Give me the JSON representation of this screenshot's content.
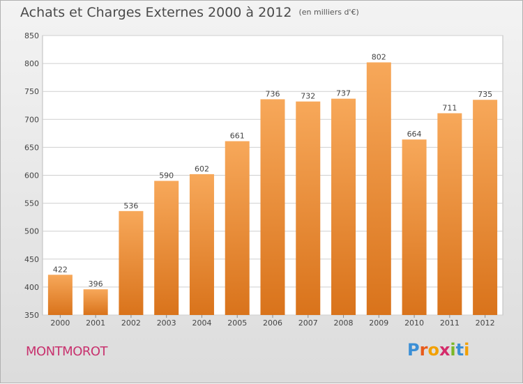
{
  "title": "Achats et Charges Externes 2000 à 2012",
  "unit": "(en milliers d'€)",
  "commune": "MONTMOROT",
  "logo": [
    "P",
    "r",
    "o",
    "x",
    "i",
    "t",
    "i"
  ],
  "colors": {
    "bar_light": "#f7a85a",
    "bar_dark": "#d9731b",
    "grid": "#cfcfcf",
    "axis_text": "#444444",
    "commune": "#c8326e"
  },
  "chart_data": {
    "type": "bar",
    "categories": [
      "2000",
      "2001",
      "2002",
      "2003",
      "2004",
      "2005",
      "2006",
      "2007",
      "2008",
      "2009",
      "2010",
      "2011",
      "2012"
    ],
    "values": [
      422,
      396,
      536,
      590,
      602,
      661,
      736,
      732,
      737,
      802,
      664,
      711,
      735
    ],
    "ylim": [
      350,
      850
    ],
    "yticks": [
      350,
      400,
      450,
      500,
      550,
      600,
      650,
      700,
      750,
      800,
      850
    ],
    "grid": true,
    "data_labels": true
  }
}
